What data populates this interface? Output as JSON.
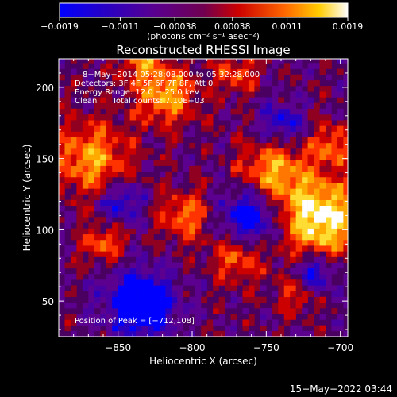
{
  "chart_data": {
    "type": "heatmap",
    "title": "Reconstructed RHESSI Image",
    "xlabel": "Heliocentric X (arcsec)",
    "ylabel": "Heliocentric Y (arcsec)",
    "xlim": [
      -890,
      -695
    ],
    "ylim": [
      25,
      220
    ],
    "x_ticks": [
      -850,
      -800,
      -750,
      -700
    ],
    "x_tick_labels": [
      "−850",
      "−800",
      "−750",
      "−700"
    ],
    "y_ticks": [
      50,
      100,
      150,
      200
    ],
    "y_tick_labels": [
      "50",
      "100",
      "150",
      "200"
    ],
    "colorbar": {
      "ticks": [
        -0.0019,
        -0.0011,
        -0.00038,
        0.00038,
        0.0011,
        0.0019
      ],
      "tick_labels": [
        "−0.0019",
        "−0.0011",
        "−0.00038",
        "0.00038",
        "0.0011",
        "0.0019"
      ],
      "range": [
        -0.0019,
        0.0019
      ],
      "unit_label": "(photons cm⁻² s⁻¹ asec⁻²)",
      "colormap": [
        "#0000ff",
        "#40007f",
        "#7a00ff",
        "#cc0000",
        "#ff6600",
        "#ffcc00",
        "#ffffff"
      ]
    },
    "annotations": [
      "8−May−2014 05:28:08.000 to 05:32:28.000",
      "Detectors: 3F 4F 5F 6F 7F 8F, Att 0",
      "Energy Range: 12.0 − 25.0 keV",
      "Clean      Total counts: 7.10E+03"
    ],
    "peak_label": "Position of Peak = [−712,108]",
    "peak": [
      -712,
      108
    ],
    "grid": false,
    "footer_timestamp": "15−May−2022 03:44"
  }
}
